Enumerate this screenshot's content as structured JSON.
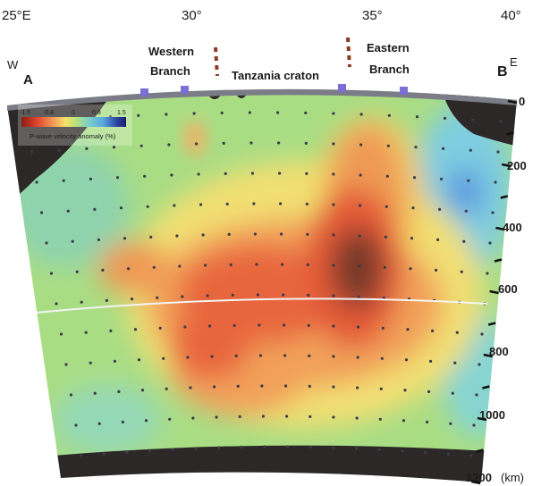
{
  "longitudes": [
    "25°E",
    "30°",
    "35°",
    "40°"
  ],
  "ends": {
    "west": "W",
    "east": "E",
    "a": "A",
    "b": "B"
  },
  "features": {
    "western_branch_1": "Western",
    "western_branch_2": "Branch",
    "craton": "Tanzania craton",
    "eastern_branch_1": "Eastern",
    "eastern_branch_2": "Branch"
  },
  "depth_ticks": [
    "0",
    "200",
    "400",
    "600",
    "800",
    "1000",
    "1200"
  ],
  "depth_unit": "(km)",
  "colorbar": {
    "ticks": [
      "-1.5",
      "-0.8",
      "0",
      "0.8",
      "1.5"
    ],
    "label": "P-wave velocity anomaly (%)",
    "colors": [
      "#8e1a14",
      "#e0452c",
      "#f39a57",
      "#f7e06a",
      "#b9e27a",
      "#7ad0c8",
      "#5aa7de",
      "#2e4da8",
      "#1a1a6e"
    ]
  },
  "colors": {
    "background_field": "#a9dd84",
    "masked": "#2b2827",
    "surface_bar": "#7c7c88",
    "rift_marker": "#8b3a22",
    "station": "#7b6fd6",
    "transition_zone_line": "#f4f4f4"
  }
}
